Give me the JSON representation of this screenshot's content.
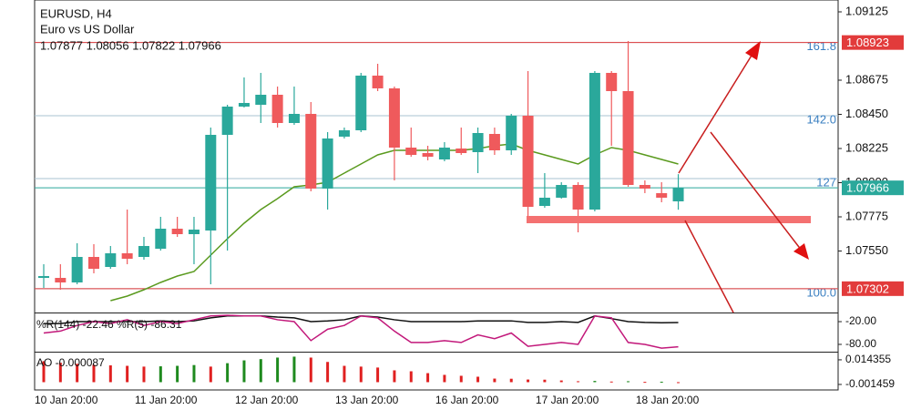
{
  "chart_data": [
    {
      "type": "candlestick",
      "title": "EURUSD, H4",
      "subtitle": "Euro vs US Dollar",
      "ohlc_label": "1.07877 1.08056 1.07822 1.07966",
      "categories": [
        "10 Jan 20:00",
        null,
        null,
        null,
        null,
        null,
        "11 Jan 20:00",
        null,
        null,
        null,
        null,
        null,
        "12 Jan 20:00",
        null,
        null,
        null,
        null,
        null,
        "13 Jan 20:00",
        null,
        null,
        null,
        null,
        null,
        "16 Jan 20:00",
        null,
        null,
        null,
        null,
        null,
        "17 Jan 20:00",
        null,
        null,
        null,
        null,
        null,
        "18 Jan 20:00",
        null,
        null
      ],
      "open": [
        1.07373,
        1.07373,
        1.07343,
        1.07511,
        1.07445,
        1.07535,
        1.07511,
        1.07565,
        1.07697,
        1.07661,
        1.07685,
        1.08315,
        1.08501,
        1.08513,
        1.08579,
        1.08393,
        1.08453,
        1.07961,
        1.08303,
        1.08345,
        1.08705,
        1.08621,
        1.08231,
        1.08195,
        1.08153,
        1.08225,
        1.08201,
        1.08321,
        1.08213,
        1.08441,
        1.07847,
        1.07901,
        1.07985,
        1.07823,
        1.08723,
        1.08603,
        1.07985,
        1.07931,
        1.07877
      ],
      "high": [
        1.07463,
        1.07463,
        1.07601,
        1.07595,
        1.07583,
        1.07823,
        1.07643,
        1.07775,
        1.07775,
        1.07775,
        1.08363,
        1.08513,
        1.08693,
        1.08723,
        1.08633,
        1.08633,
        1.08531,
        1.08333,
        1.08363,
        1.08723,
        1.08783,
        1.08633,
        1.08363,
        1.08243,
        1.08267,
        1.08363,
        1.08363,
        1.08363,
        1.08453,
        1.08735,
        1.08063,
        1.08003,
        1.08003,
        1.08735,
        1.08735,
        1.08933,
        1.08015,
        1.08003,
        1.08056
      ],
      "low": [
        1.07307,
        1.07295,
        1.07331,
        1.07403,
        1.07433,
        1.07463,
        1.07493,
        1.07553,
        1.07643,
        1.07463,
        1.07331,
        1.07553,
        1.08495,
        1.08393,
        1.08363,
        1.08381,
        1.07943,
        1.07823,
        1.08291,
        1.08333,
        1.08603,
        1.08015,
        1.08171,
        1.08147,
        1.08141,
        1.08183,
        1.08063,
        1.08183,
        1.08183,
        1.07745,
        1.07835,
        1.07895,
        1.07673,
        1.07811,
        1.08243,
        1.07973,
        1.07931,
        1.07871,
        1.07822
      ],
      "close": [
        1.07385,
        1.07343,
        1.07511,
        1.07433,
        1.07535,
        1.07499,
        1.07583,
        1.07697,
        1.07661,
        1.07691,
        1.08315,
        1.08501,
        1.08525,
        1.08579,
        1.08393,
        1.08453,
        1.07961,
        1.08291,
        1.08345,
        1.08705,
        1.08621,
        1.08231,
        1.08183,
        1.08171,
        1.08231,
        1.08195,
        1.08327,
        1.08213,
        1.08441,
        1.07841,
        1.07901,
        1.07985,
        1.07823,
        1.08723,
        1.08603,
        1.07985,
        1.07961,
        1.07901,
        1.07966
      ],
      "up_color": "#2aa89b",
      "down_color": "#ef5a5c",
      "lines": [
        {
          "color": "#5a9a1e",
          "values": [
            null,
            null,
            null,
            null,
            1.07223,
            1.07253,
            1.07295,
            1.07343,
            1.07385,
            1.07415,
            1.07523,
            1.07631,
            1.07733,
            1.07823,
            1.07895,
            1.07973,
            1.07985,
            1.08003,
            1.08063,
            1.08123,
            1.08183,
            1.08213,
            1.08213,
            1.08213,
            1.08213,
            1.08213,
            1.08225,
            1.08243,
            1.08255,
            1.08213,
            1.08183,
            1.08153,
            1.08123,
            1.08183,
            1.08231,
            1.08213,
            1.08183,
            1.08153,
            1.08123
          ]
        }
      ],
      "ylim": [
        1.07145,
        1.09203
      ],
      "yticks": [
        1.09125,
        1.08675,
        {
          "value": 1.0845,
          "label": "1.08450"
        },
        1.08225,
        {
          "value": 1.08,
          "label": "1.08000"
        },
        1.07775,
        {
          "value": 1.0755,
          "label": "1.07550"
        }
      ],
      "fib_levels": [
        {
          "label": "161.8",
          "value": 1.08923
        },
        {
          "label": "142.0",
          "value": 1.08441
        },
        {
          "label": "127",
          "value": 1.08027
        },
        {
          "label": "100.0",
          "value": 1.07302
        }
      ],
      "price_lines": [
        {
          "value": 1.08923,
          "color": "#e23b3b"
        },
        {
          "value": 1.07966,
          "color": "#2aa89b"
        },
        {
          "value": 1.07302,
          "color": "#e23b3b"
        }
      ]
    },
    {
      "type": "line",
      "title": "%R(144) -22.46 %R(5) -86.31",
      "series": [
        {
          "color": "#111111",
          "values": [
            -25,
            -25,
            -20,
            -20,
            -20,
            -20,
            -20,
            -18,
            -20,
            -18,
            -10,
            -5,
            -5,
            -5,
            -8,
            -10,
            -20,
            -18,
            -15,
            -5,
            -8,
            -15,
            -20,
            -20,
            -20,
            -20,
            -18,
            -18,
            -18,
            -22,
            -22,
            -20,
            -22,
            -5,
            -12,
            -20,
            -22,
            -23,
            -22.46
          ]
        },
        {
          "color": "#c2187a",
          "values": [
            -50,
            -45,
            -30,
            -20,
            -25,
            -15,
            -30,
            -20,
            -25,
            -15,
            -5,
            -3,
            -5,
            -5,
            -15,
            -20,
            -70,
            -40,
            -30,
            -5,
            -10,
            -45,
            -75,
            -75,
            -70,
            -75,
            -55,
            -65,
            -50,
            -85,
            -80,
            -75,
            -80,
            -5,
            -10,
            -75,
            -80,
            -90,
            -86.31
          ]
        }
      ],
      "ylim": [
        -100,
        0
      ],
      "yticks": [
        {
          "value": -20,
          "label": "-20.00"
        },
        {
          "value": -80,
          "label": "-80.00"
        }
      ]
    },
    {
      "type": "bar",
      "title": "AO -0.000087",
      "values": [
        0.0135,
        0.0125,
        0.0118,
        0.0112,
        0.0108,
        0.0105,
        0.01,
        0.0102,
        0.0105,
        0.011,
        0.01,
        0.0122,
        0.014,
        0.0148,
        0.0158,
        0.0164,
        0.0158,
        0.013,
        0.0105,
        0.01,
        0.0094,
        0.0076,
        0.007,
        0.0058,
        0.0047,
        0.0041,
        0.0035,
        0.0023,
        0.0022,
        0.0017,
        0.0016,
        0.0011,
        0.0006,
        0.0008,
        0.0004,
        0.0006,
        0.0002,
        0.0003,
        -8.7e-05
      ],
      "up_color": "#1e8a1e",
      "down_color": "#e02020",
      "ylim": [
        -0.005,
        0.019
      ],
      "yticks": [
        0.014355,
        -0.001459
      ]
    }
  ]
}
